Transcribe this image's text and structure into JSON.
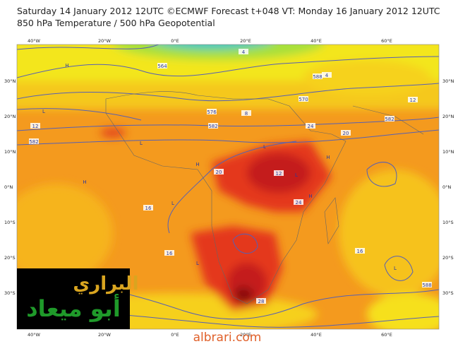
{
  "header": {
    "line1": "Saturday 14 January 2012 12UTC ©ECMWF Forecast t+048 VT: Monday 16 January 2012 12UTC",
    "line2": "850 hPa Temperature / 500 hPa Geopotential"
  },
  "map": {
    "lon_labels": [
      "40°W",
      "20°W",
      "0°E",
      "20°E",
      "40°E",
      "60°E"
    ],
    "lat_labels": [
      "30°N",
      "20°N",
      "10°N",
      "0°N",
      "10°S",
      "20°S",
      "30°S"
    ],
    "contour_labels": [
      "576",
      "582",
      "582",
      "564",
      "570",
      "588",
      "12",
      "12",
      "16",
      "16",
      "16",
      "20",
      "20",
      "24",
      "24",
      "28",
      "8",
      "4",
      "4",
      "12",
      "582",
      "588"
    ],
    "pressure_centers": [
      "H",
      "L",
      "L",
      "H",
      "L",
      "H",
      "L",
      "H",
      "L",
      "L",
      "H",
      "L"
    ]
  },
  "logo": {
    "line1": "البراري",
    "line2": "أبو ميعاد"
  },
  "watermark": "albrari.com"
}
